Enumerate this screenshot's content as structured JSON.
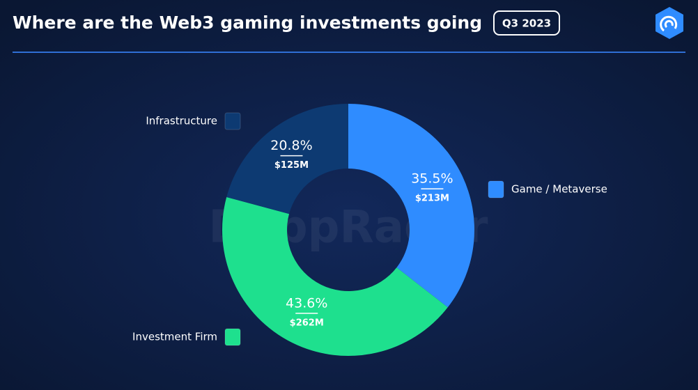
{
  "chart_data": {
    "type": "donut",
    "title": "Where are the Web3 gaming investments going",
    "badge": "Q3 2023",
    "watermark": "DappRadar",
    "categories": [
      "Game / Metaverse",
      "Investment Firm",
      "Infrastructure"
    ],
    "values": [
      35.5,
      43.6,
      20.8
    ],
    "value_labels": [
      "35.5%",
      "43.6%",
      "20.8%"
    ],
    "amount_labels": [
      "$213M",
      "$262M",
      "$125M"
    ],
    "colors": [
      "#2f8cff",
      "#1ee08e",
      "#0d3a72"
    ]
  }
}
